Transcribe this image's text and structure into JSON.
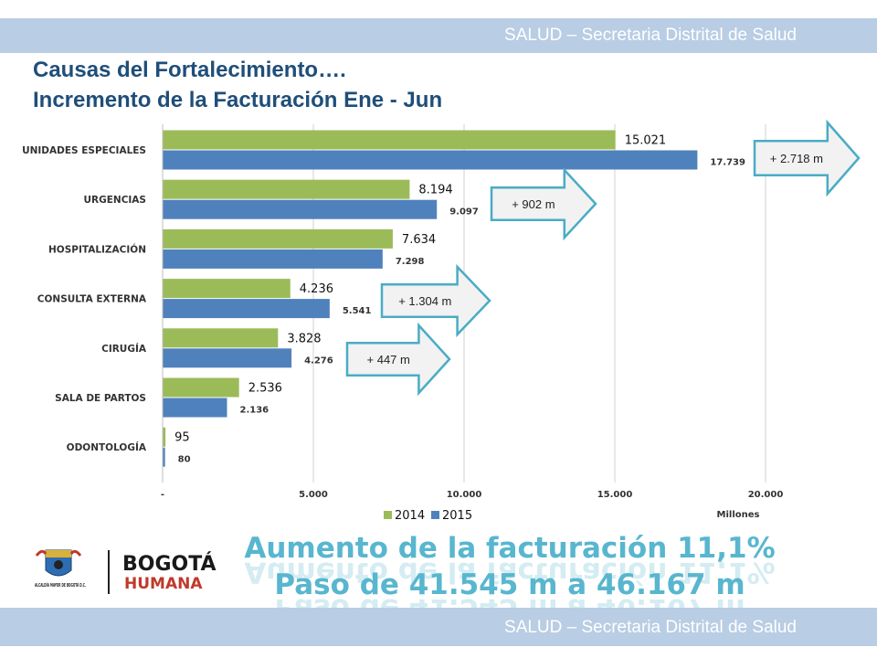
{
  "header": {
    "text": "SALUD – Secretaria Distrital de Salud"
  },
  "footer": {
    "text": "SALUD – Secretaria Distrital de Salud"
  },
  "title": {
    "line1": "Causas del Fortalecimiento….",
    "line2": "Incremento de la Facturación Ene - Jun"
  },
  "chart_data": {
    "type": "bar",
    "orientation": "horizontal",
    "categories": [
      "UNIDADES ESPECIALES",
      "URGENCIAS",
      "HOSPITALIZACIÓN",
      "CONSULTA EXTERNA",
      "CIRUGÍA",
      "SALA DE PARTOS",
      "ODONTOLOGÍA"
    ],
    "series": [
      {
        "name": "2014",
        "color": "#9bbb59",
        "values": [
          15021,
          8194,
          7634,
          4236,
          3828,
          2536,
          95
        ],
        "labels": [
          "15.021",
          "8.194",
          "7.634",
          "4.236",
          "3.828",
          "2.536",
          "95"
        ]
      },
      {
        "name": "2015",
        "color": "#4f81bd",
        "values": [
          17739,
          9097,
          7298,
          5541,
          4276,
          2136,
          80
        ],
        "labels": [
          "17.739",
          "9.097",
          "7.298",
          "5.541",
          "4.276",
          "2.136",
          "80"
        ]
      }
    ],
    "xlim": [
      0,
      20000
    ],
    "xticks": [
      0,
      5000,
      10000,
      15000,
      20000
    ],
    "xtick_labels": [
      "-",
      "5.000",
      "10.000",
      "15.000",
      "20.000"
    ],
    "xlabel": "Millones",
    "grid": true,
    "legend_position": "bottom",
    "callouts": [
      {
        "category": "UNIDADES ESPECIALES",
        "text": "+ 2.718 m"
      },
      {
        "category": "URGENCIAS",
        "text": "+ 902 m"
      },
      {
        "category": "CONSULTA EXTERNA",
        "text": "+ 1.304 m"
      },
      {
        "category": "CIRUGÍA",
        "text": "+ 447 m"
      }
    ]
  },
  "headline": {
    "line1": "Aumento de la facturación 11,1%",
    "line2": "Paso de 41.545 m a 46.167 m",
    "color": "#58b6cf"
  },
  "logos": {
    "alcaldia": "ALCALDÍA MAYOR DE BOGOTÁ D.C.",
    "bogota_top": "BOGOTÁ",
    "bogota_bottom": "HUMANA"
  }
}
